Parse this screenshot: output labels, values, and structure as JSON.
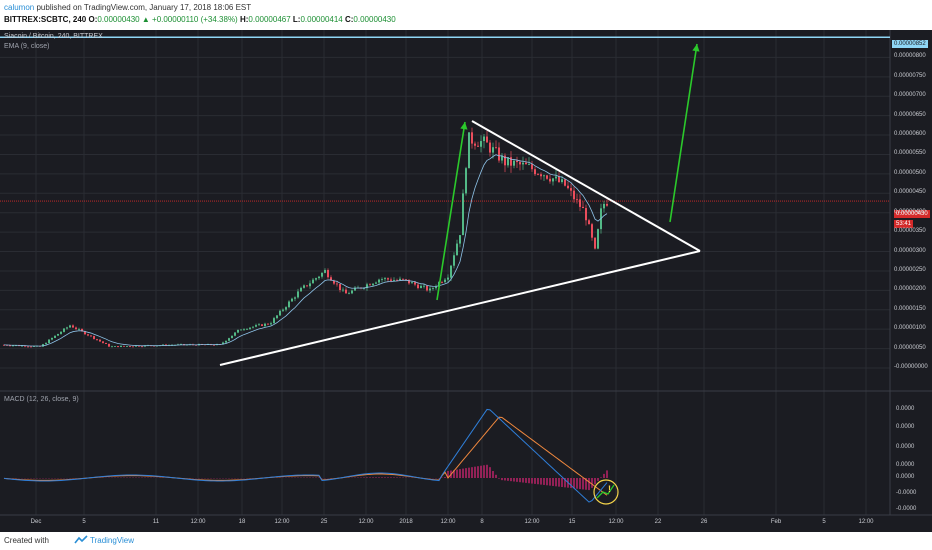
{
  "header": {
    "author": "calumon",
    "published": "published on TradingView.com, January 17, 2018 18:06 EST",
    "symbol": "BITTREX:SCBTC, 240",
    "open_label": "O:",
    "open": "0.00000430",
    "change_arrow": "▲",
    "change": "+0.00000110 (+34.38%)",
    "high_label": "H:",
    "high": "0.00000467",
    "low_label": "L:",
    "low": "0.00000414",
    "close_label": "C:",
    "close": "0.00000430"
  },
  "chart": {
    "title": "Siacoin / Bitcoin, 240, BITTREX",
    "ema_label": "EMA (9, close)",
    "macd_label": "MACD (12, 26, close, 9)",
    "colors": {
      "background": "#1b1c22",
      "grid": "#2a2c33",
      "bull": "#53b987",
      "bear": "#eb4d5c",
      "ema": "#8ec3e8",
      "macd": "#2f7ed8",
      "signal": "#f0883e",
      "hist": "#c6246c",
      "trend": "#ffffff",
      "arrow": "#2bc92b",
      "target": "#8fd6f5",
      "price_line": "#d42a2a"
    },
    "target_price_tag": "0.00000852",
    "last_price_tag": "0.00000430",
    "countdown_tag": "53:41",
    "warning_glyph": "!"
  },
  "chart_data": {
    "type": "candlestick",
    "price_axis_ticks": [
      "0.00000800",
      "0.00000750",
      "0.00000700",
      "0.00000650",
      "0.00000600",
      "0.00000550",
      "0.00000500",
      "0.00000450",
      "0.00000400",
      "0.00000350",
      "0.00000300",
      "0.00000250",
      "0.00000200",
      "0.00000150",
      "0.00000100",
      "0.00000050",
      "-0.00000000"
    ],
    "price_ylim": [
      0,
      8.5e-06
    ],
    "macd_axis_ticks": [
      "0.0000",
      "0.0000",
      "0.0000",
      "0.0000",
      "0.0000",
      "-0.0000",
      "-0.0000"
    ],
    "time_axis_ticks": [
      "Dec",
      "5",
      "11",
      "12:00",
      "18",
      "12:00",
      "25",
      "12:00",
      "2018",
      "12:00",
      "8",
      "12:00",
      "15",
      "12:00",
      "22",
      "26",
      "Feb",
      "5",
      "12:00"
    ],
    "price_series_anchors": [
      [
        0,
        6e-07
      ],
      [
        40,
        5.5e-07
      ],
      [
        70,
        1.1e-06
      ],
      [
        110,
        5.5e-07
      ],
      [
        180,
        6e-07
      ],
      [
        220,
        6e-07
      ],
      [
        240,
        1e-06
      ],
      [
        270,
        1.15e-06
      ],
      [
        300,
        2e-06
      ],
      [
        325,
        2.5e-06
      ],
      [
        345,
        1.9e-06
      ],
      [
        380,
        2.3e-06
      ],
      [
        405,
        2.25e-06
      ],
      [
        430,
        2e-06
      ],
      [
        448,
        2.4e-06
      ],
      [
        460,
        3.5e-06
      ],
      [
        468,
        5.9e-06
      ],
      [
        485,
        5.8e-06
      ],
      [
        505,
        5.3e-06
      ],
      [
        525,
        5.2e-06
      ],
      [
        545,
        5e-06
      ],
      [
        565,
        4.7e-06
      ],
      [
        585,
        4e-06
      ],
      [
        595,
        3e-06
      ],
      [
        602,
        4.2e-06
      ],
      [
        608,
        4.3e-06
      ]
    ],
    "last_close": 4.3e-06,
    "target": 8.52e-06,
    "trendline_upper": [
      [
        6.7e-06,
        "early Jan"
      ],
      [
        3.45e-06,
        "~26 Jan"
      ]
    ],
    "trendline_lower": [
      [
        6e-07,
        "mid Dec"
      ],
      [
        3.45e-06,
        "~26 Jan"
      ]
    ]
  }
}
